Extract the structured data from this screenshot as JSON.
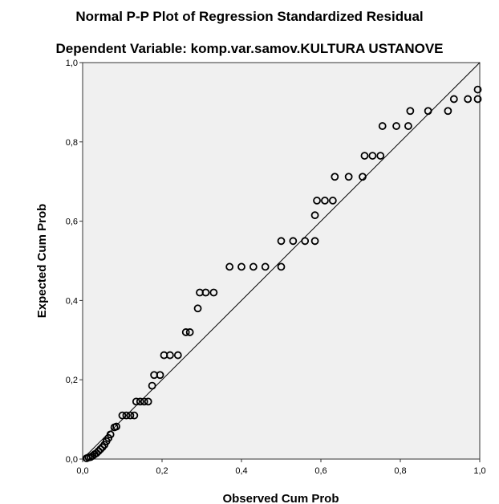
{
  "chart_data": {
    "type": "scatter",
    "title": "Normal P-P Plot of Regression Standardized Residual",
    "subtitle": "Dependent Variable: komp.var.samov.KULTURA USTANOVE",
    "xlabel": "Observed Cum Prob",
    "ylabel": "Expected Cum Prob",
    "xlim": [
      0,
      1
    ],
    "ylim": [
      0,
      1
    ],
    "xticks": [
      "0,0",
      "0,2",
      "0,4",
      "0,6",
      "0,8",
      "1,0"
    ],
    "yticks": [
      "0,0",
      "0,2",
      "0,4",
      "0,6",
      "0,8",
      "1,0"
    ],
    "grid": false,
    "legend": "none",
    "reference_line": [
      [
        0,
        0
      ],
      [
        1,
        1
      ]
    ],
    "series": [
      {
        "marker": "open-circle",
        "points": [
          [
            0.01,
            0.002
          ],
          [
            0.015,
            0.004
          ],
          [
            0.02,
            0.005
          ],
          [
            0.025,
            0.008
          ],
          [
            0.03,
            0.012
          ],
          [
            0.035,
            0.015
          ],
          [
            0.04,
            0.02
          ],
          [
            0.045,
            0.025
          ],
          [
            0.05,
            0.03
          ],
          [
            0.055,
            0.036
          ],
          [
            0.06,
            0.045
          ],
          [
            0.065,
            0.053
          ],
          [
            0.07,
            0.062
          ],
          [
            0.08,
            0.08
          ],
          [
            0.085,
            0.082
          ],
          [
            0.1,
            0.11
          ],
          [
            0.11,
            0.11
          ],
          [
            0.12,
            0.11
          ],
          [
            0.13,
            0.11
          ],
          [
            0.135,
            0.145
          ],
          [
            0.145,
            0.145
          ],
          [
            0.155,
            0.145
          ],
          [
            0.165,
            0.145
          ],
          [
            0.175,
            0.185
          ],
          [
            0.18,
            0.212
          ],
          [
            0.195,
            0.212
          ],
          [
            0.205,
            0.262
          ],
          [
            0.22,
            0.262
          ],
          [
            0.24,
            0.262
          ],
          [
            0.26,
            0.32
          ],
          [
            0.27,
            0.32
          ],
          [
            0.29,
            0.38
          ],
          [
            0.295,
            0.42
          ],
          [
            0.31,
            0.42
          ],
          [
            0.33,
            0.42
          ],
          [
            0.37,
            0.485
          ],
          [
            0.4,
            0.485
          ],
          [
            0.43,
            0.485
          ],
          [
            0.46,
            0.485
          ],
          [
            0.5,
            0.485
          ],
          [
            0.5,
            0.55
          ],
          [
            0.53,
            0.55
          ],
          [
            0.56,
            0.55
          ],
          [
            0.585,
            0.55
          ],
          [
            0.585,
            0.615
          ],
          [
            0.59,
            0.652
          ],
          [
            0.61,
            0.652
          ],
          [
            0.63,
            0.652
          ],
          [
            0.635,
            0.712
          ],
          [
            0.67,
            0.712
          ],
          [
            0.705,
            0.712
          ],
          [
            0.71,
            0.765
          ],
          [
            0.73,
            0.765
          ],
          [
            0.75,
            0.765
          ],
          [
            0.755,
            0.84
          ],
          [
            0.79,
            0.84
          ],
          [
            0.82,
            0.84
          ],
          [
            0.825,
            0.878
          ],
          [
            0.87,
            0.878
          ],
          [
            0.92,
            0.878
          ],
          [
            0.935,
            0.908
          ],
          [
            0.97,
            0.908
          ],
          [
            0.995,
            0.908
          ],
          [
            0.995,
            0.932
          ]
        ]
      }
    ]
  }
}
